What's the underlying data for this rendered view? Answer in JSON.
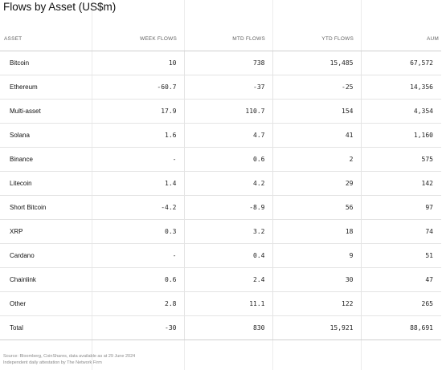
{
  "title": "Flows by Asset (US$m)",
  "columns": [
    "ASSET",
    "WEEK FLOWS",
    "MTD FLOWS",
    "YTD FLOWS",
    "AUM"
  ],
  "rows": [
    {
      "asset": "Bitcoin",
      "week": "10",
      "mtd": "738",
      "ytd": "15,485",
      "aum": "67,572"
    },
    {
      "asset": "Ethereum",
      "week": "-60.7",
      "mtd": "-37",
      "ytd": "-25",
      "aum": "14,356"
    },
    {
      "asset": "Multi-asset",
      "week": "17.9",
      "mtd": "110.7",
      "ytd": "154",
      "aum": "4,354"
    },
    {
      "asset": "Solana",
      "week": "1.6",
      "mtd": "4.7",
      "ytd": "41",
      "aum": "1,160"
    },
    {
      "asset": "Binance",
      "week": "-",
      "mtd": "0.6",
      "ytd": "2",
      "aum": "575"
    },
    {
      "asset": "Litecoin",
      "week": "1.4",
      "mtd": "4.2",
      "ytd": "29",
      "aum": "142"
    },
    {
      "asset": "Short Bitcoin",
      "week": "-4.2",
      "mtd": "-8.9",
      "ytd": "56",
      "aum": "97"
    },
    {
      "asset": "XRP",
      "week": "0.3",
      "mtd": "3.2",
      "ytd": "18",
      "aum": "74"
    },
    {
      "asset": "Cardano",
      "week": "-",
      "mtd": "0.4",
      "ytd": "9",
      "aum": "51"
    },
    {
      "asset": "Chainlink",
      "week": "0.6",
      "mtd": "2.4",
      "ytd": "30",
      "aum": "47"
    },
    {
      "asset": "Other",
      "week": "2.8",
      "mtd": "11.1",
      "ytd": "122",
      "aum": "265"
    },
    {
      "asset": "Total",
      "week": "-30",
      "mtd": "830",
      "ytd": "15,921",
      "aum": "88,691"
    }
  ],
  "footer": {
    "source": "Source: Bloomberg, CoinShares, data available as at 29 June 2024",
    "attestation": "Independent daily attestation by The Network Firm"
  }
}
